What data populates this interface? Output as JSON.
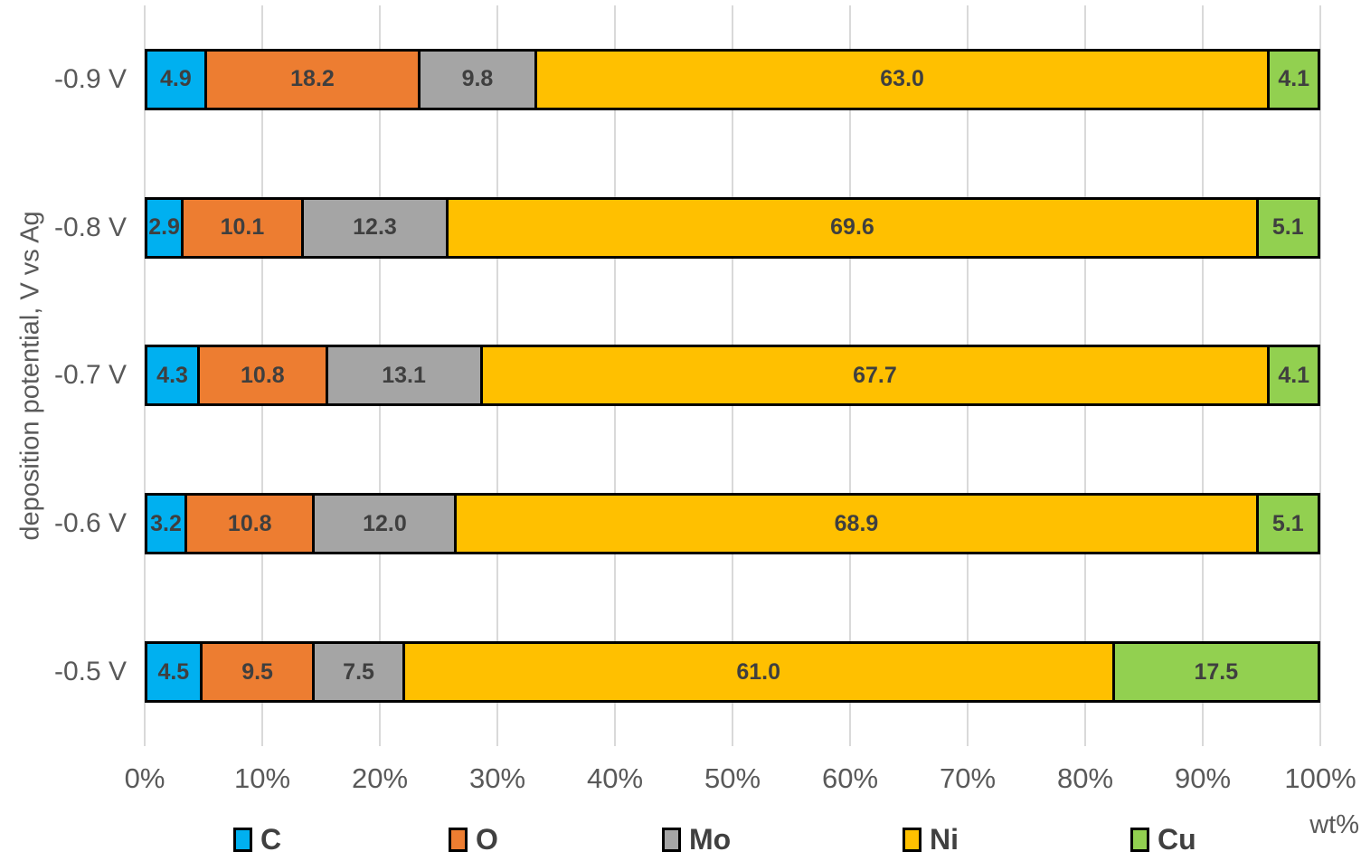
{
  "chart_data": {
    "type": "bar",
    "orientation": "horizontal",
    "stacked": true,
    "ylabel": "deposition potential, V vs Ag",
    "x_unit_label": "wt%",
    "categories": [
      "-0.9 V",
      "-0.8 V",
      "-0.7 V",
      "-0.6 V",
      "-0.5 V"
    ],
    "series": [
      {
        "name": "C",
        "color": "#00b0f0",
        "values": [
          4.9,
          2.9,
          4.3,
          3.2,
          4.5
        ]
      },
      {
        "name": "O",
        "color": "#ed7d31",
        "values": [
          18.2,
          10.1,
          10.8,
          10.8,
          9.5
        ]
      },
      {
        "name": "Mo",
        "color": "#a5a5a5",
        "values": [
          9.8,
          12.3,
          13.1,
          12.0,
          7.5
        ]
      },
      {
        "name": "Ni",
        "color": "#ffc000",
        "values": [
          63.0,
          69.6,
          67.7,
          68.9,
          61.0
        ]
      },
      {
        "name": "Cu",
        "color": "#92d050",
        "values": [
          4.1,
          5.1,
          4.1,
          5.1,
          17.5
        ]
      }
    ],
    "x_ticks": [
      "0%",
      "10%",
      "20%",
      "30%",
      "40%",
      "50%",
      "60%",
      "70%",
      "80%",
      "90%",
      "100%"
    ],
    "xlim": [
      0,
      100
    ],
    "grid": true,
    "gridline_color": "#d9d9d9",
    "legend_position": "bottom",
    "value_label_decimals": 1
  }
}
